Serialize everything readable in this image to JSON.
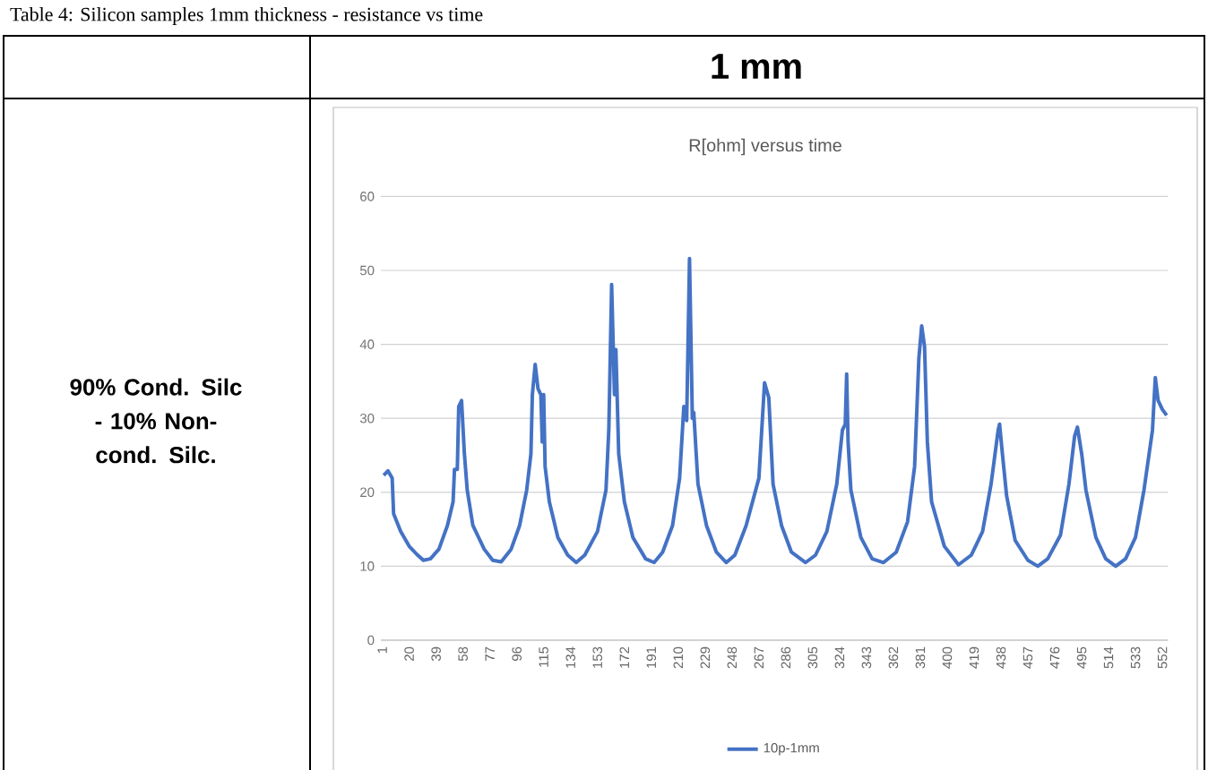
{
  "chart_data": {
    "type": "line",
    "title": "R[ohm] versus time",
    "annotations": [
      "Table 4: Silicon samples 1mm thickness - resistance vs time",
      "1 mm",
      "90% Cond. Silc - 10% Non-cond. Silc."
    ],
    "series": [
      {
        "name": "10p-1mm",
        "color": "#4472c4",
        "x": [
          2,
          5,
          8,
          9,
          14,
          20,
          26,
          30,
          35,
          41,
          47,
          51,
          52,
          54,
          55,
          57,
          59,
          61,
          65,
          73,
          79,
          85,
          92,
          98,
          103,
          106,
          107,
          109,
          111,
          113,
          114,
          115,
          116,
          119,
          125,
          132,
          138,
          144,
          153,
          159,
          161,
          163,
          165,
          166,
          168,
          172,
          178,
          187,
          193,
          199,
          206,
          211,
          214,
          216,
          218,
          220,
          221,
          224,
          230,
          237,
          244,
          250,
          258,
          267,
          271,
          274,
          277,
          283,
          290,
          300,
          307,
          315,
          322,
          326,
          328,
          329,
          330,
          332,
          339,
          347,
          355,
          364,
          372,
          377,
          380,
          382,
          384,
          386,
          389,
          398,
          408,
          417,
          425,
          431,
          436,
          437,
          439,
          442,
          448,
          457,
          464,
          471,
          480,
          486,
          490,
          492,
          495,
          498,
          505,
          512,
          519,
          526,
          533,
          539,
          545,
          547,
          549,
          552,
          555
        ],
        "values": [
          22.3,
          22.9,
          21.9,
          17.1,
          14.7,
          12.7,
          11.5,
          10.8,
          11.0,
          12.3,
          15.5,
          18.7,
          23.1,
          23.1,
          31.6,
          32.4,
          25.2,
          20.3,
          15.5,
          12.3,
          10.8,
          10.6,
          12.3,
          15.5,
          20.3,
          25.2,
          33.2,
          37.3,
          34.0,
          33.2,
          26.8,
          33.2,
          23.5,
          18.7,
          13.9,
          11.5,
          10.5,
          11.5,
          14.7,
          20.3,
          28.4,
          48.1,
          33.2,
          39.3,
          25.2,
          18.7,
          13.9,
          11.0,
          10.5,
          11.9,
          15.5,
          21.9,
          31.6,
          29.7,
          51.6,
          30.0,
          30.8,
          21.1,
          15.5,
          11.9,
          10.5,
          11.5,
          15.5,
          21.9,
          34.8,
          32.8,
          21.1,
          15.5,
          11.9,
          10.5,
          11.5,
          14.7,
          21.1,
          28.4,
          29.2,
          36.0,
          26.8,
          20.3,
          13.9,
          11.0,
          10.5,
          11.9,
          16.0,
          23.5,
          38.1,
          42.5,
          39.7,
          26.8,
          18.7,
          12.7,
          10.2,
          11.5,
          14.7,
          21.1,
          28.4,
          29.2,
          25.2,
          19.5,
          13.5,
          10.8,
          10.0,
          11.0,
          14.2,
          21.1,
          27.6,
          28.8,
          25.2,
          20.3,
          13.9,
          11.0,
          10.0,
          11.0,
          13.9,
          20.3,
          28.4,
          35.5,
          32.4,
          31.2,
          30.4
        ]
      }
    ],
    "xlim": [
      0,
      556
    ],
    "xticks": [
      1,
      20,
      39,
      58,
      77,
      96,
      115,
      134,
      153,
      172,
      191,
      210,
      229,
      248,
      267,
      286,
      305,
      324,
      343,
      362,
      381,
      400,
      419,
      438,
      457,
      476,
      495,
      514,
      533,
      552
    ],
    "ylim": [
      0,
      60
    ],
    "yticks": [
      0,
      10,
      20,
      30,
      40,
      50,
      60
    ],
    "grid": "y",
    "legend": "bottom"
  }
}
